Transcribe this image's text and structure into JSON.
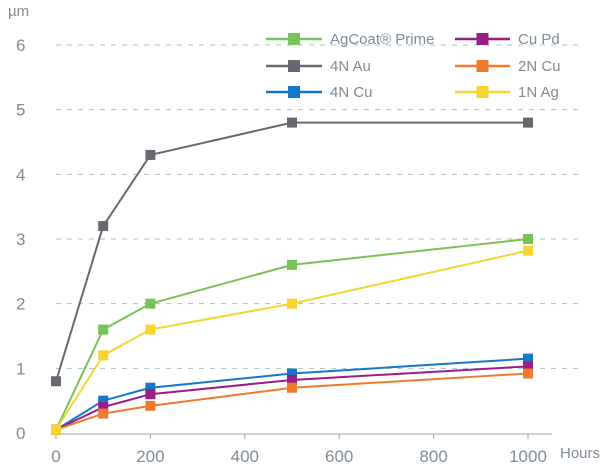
{
  "chart_data": {
    "type": "line",
    "xlabel": "Hours",
    "ylabel": "µm",
    "xlim": [
      0,
      1000
    ],
    "ylim": [
      0,
      6
    ],
    "xticks": [
      0,
      200,
      400,
      600,
      800,
      1000
    ],
    "yticks": [
      0,
      1,
      2,
      3,
      4,
      5,
      6
    ],
    "x": [
      0,
      100,
      200,
      500,
      1000
    ],
    "grid": "horizontal dashed",
    "legend_position": "top-right",
    "series": [
      {
        "name": "AgCoat® Prime",
        "color": "#78c257",
        "values": [
          0.05,
          1.6,
          2.0,
          2.6,
          3.0
        ]
      },
      {
        "name": "4N Au",
        "color": "#666a70",
        "values": [
          0.8,
          3.2,
          4.3,
          4.8,
          4.8
        ]
      },
      {
        "name": "4N Cu",
        "color": "#1677c7",
        "values": [
          0.05,
          0.5,
          0.7,
          0.92,
          1.15
        ]
      },
      {
        "name": "Cu Pd",
        "color": "#9a1d84",
        "values": [
          0.05,
          0.4,
          0.6,
          0.82,
          1.03
        ]
      },
      {
        "name": "2N Cu",
        "color": "#ef7c2d",
        "values": [
          0.05,
          0.3,
          0.42,
          0.7,
          0.92
        ]
      },
      {
        "name": "1N Ag",
        "color": "#f6d533",
        "values": [
          0.05,
          1.2,
          1.6,
          2.0,
          2.82
        ]
      }
    ]
  }
}
